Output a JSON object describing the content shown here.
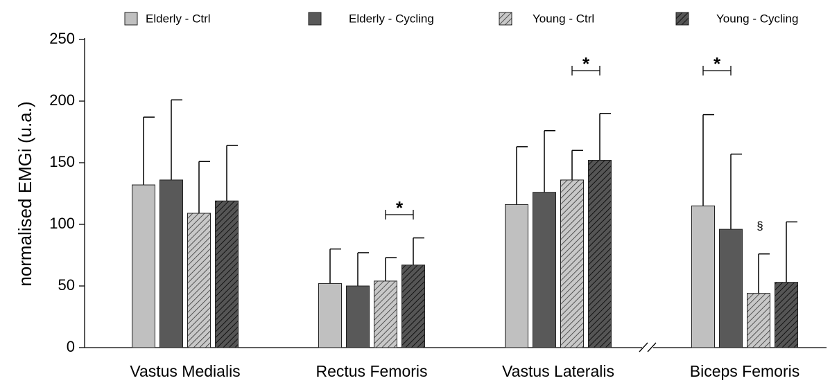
{
  "chart_data": {
    "type": "bar",
    "y_label": "normalised EMGi (u.a.)",
    "categories": [
      "Vastus Medialis",
      "Rectus Femoris",
      "Vastus Lateralis",
      "Biceps Femoris"
    ],
    "series": [
      {
        "name": "Elderly - Ctrl",
        "color": "#c0c0c0",
        "hatch": false,
        "values": [
          132,
          52,
          116,
          115
        ],
        "errors": [
          55,
          28,
          47,
          74
        ]
      },
      {
        "name": "Elderly - Cycling",
        "color": "#595959",
        "hatch": false,
        "values": [
          136,
          50,
          126,
          96
        ],
        "errors": [
          65,
          27,
          50,
          61
        ]
      },
      {
        "name": "Young - Ctrl",
        "color": "#c0c0c0",
        "hatch": true,
        "values": [
          109,
          54,
          136,
          44
        ],
        "errors": [
          42,
          19,
          24,
          32
        ]
      },
      {
        "name": "Young - Cycling",
        "color": "#4d4d4d",
        "hatch": true,
        "values": [
          119,
          67,
          152,
          53
        ],
        "errors": [
          45,
          22,
          38,
          49
        ]
      }
    ],
    "annotations": [
      "*",
      "*",
      "*",
      "§"
    ],
    "ylim": [
      0,
      250
    ],
    "yticks": [
      0,
      50,
      100,
      150,
      200,
      250
    ],
    "legend": "top"
  }
}
